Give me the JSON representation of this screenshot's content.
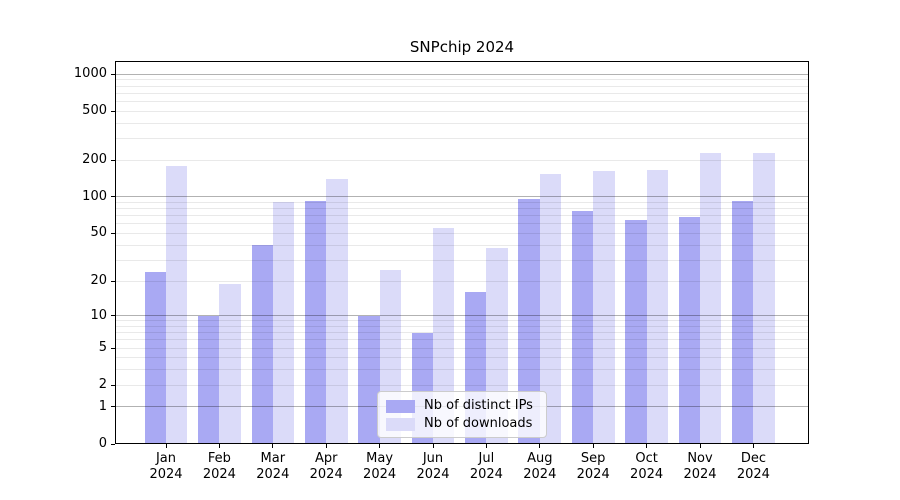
{
  "title": "SNPchip 2024",
  "chart_data": {
    "type": "bar",
    "title": "SNPchip 2024",
    "y_scale": "log1p",
    "ylim": [
      0,
      1275
    ],
    "grid": "on",
    "legend_position": "lower center (inside plot)",
    "year": "2024",
    "categories": [
      "Jan",
      "Feb",
      "Mar",
      "Apr",
      "May",
      "Jun",
      "Jul",
      "Aug",
      "Sep",
      "Oct",
      "Nov",
      "Dec"
    ],
    "series": [
      {
        "name": "Nb of distinct IPs",
        "color": "#a9a9f3",
        "values": [
          24,
          10,
          40,
          92,
          10,
          7,
          16,
          97,
          76,
          65,
          68,
          92
        ]
      },
      {
        "name": "Nb of downloads",
        "color": "#dbdbf9",
        "values": [
          180,
          19,
          90,
          140,
          25,
          55,
          38,
          153,
          162,
          167,
          228,
          228
        ]
      }
    ],
    "y_ticks": [
      1000,
      500,
      200,
      100,
      50,
      20,
      10,
      5,
      2,
      1,
      0
    ],
    "grid_major_values": [
      1,
      10,
      100,
      1000
    ],
    "grid_minor_values": [
      2,
      3,
      4,
      5,
      6,
      7,
      8,
      9,
      20,
      30,
      40,
      50,
      60,
      70,
      80,
      90,
      200,
      300,
      400,
      500,
      600,
      700,
      800,
      900
    ]
  }
}
